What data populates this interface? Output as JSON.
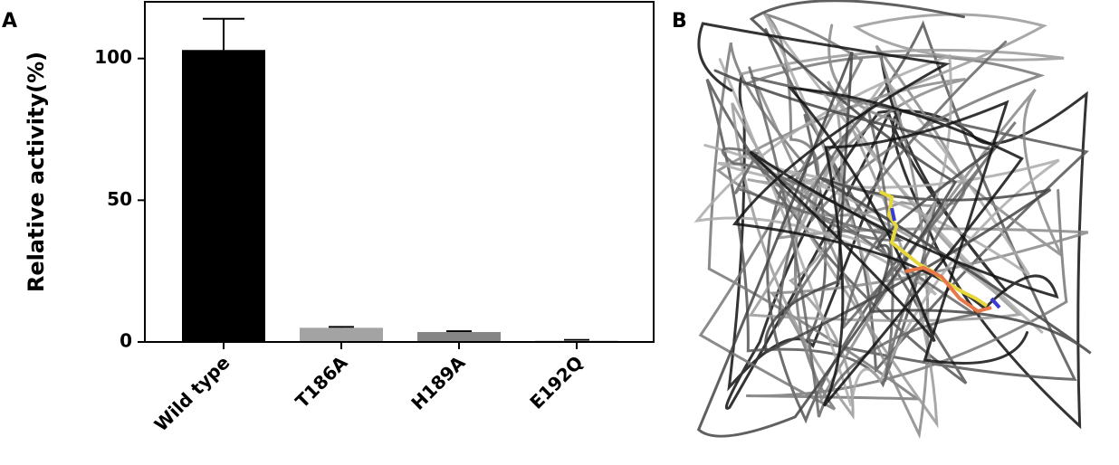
{
  "chart_data": {
    "type": "bar",
    "panel_label": "A",
    "y_label": "Relative activity(%)",
    "categories": [
      "Wild type",
      "T186A",
      "H189A",
      "E192Q"
    ],
    "values": [
      103,
      5,
      3.5,
      0.5
    ],
    "errors": [
      11,
      0.3,
      0.3,
      0.2
    ],
    "colors": [
      "#000000",
      "#a3a3a3",
      "#858585",
      "#c4c4c4"
    ],
    "ylim": [
      0,
      120
    ],
    "yticks": [
      0,
      50,
      100
    ]
  },
  "structure": {
    "panel_label": "B"
  }
}
